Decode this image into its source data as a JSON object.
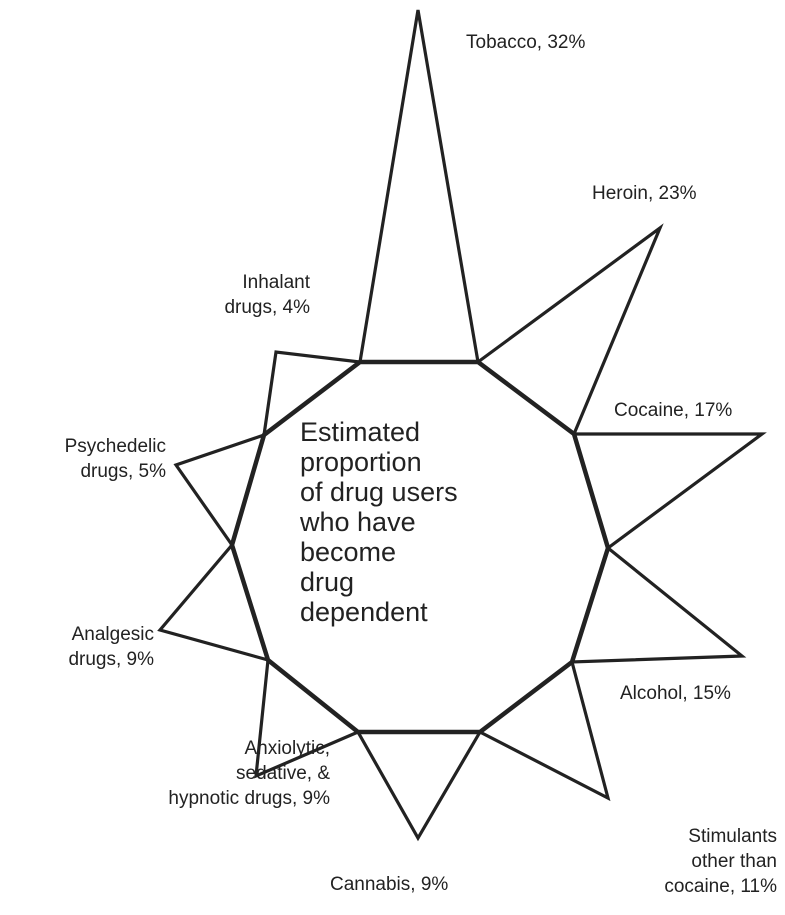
{
  "center_text": "Estimated\nproportion\nof drug users\nwho have\nbecome\ndrug\ndependent",
  "spokes": [
    {
      "key": "tobacco",
      "label": "Tobacco, 32%",
      "value": 32
    },
    {
      "key": "heroin",
      "label": "Heroin, 23%",
      "value": 23
    },
    {
      "key": "cocaine",
      "label": "Cocaine, 17%",
      "value": 17
    },
    {
      "key": "alcohol",
      "label": "Alcohol, 15%",
      "value": 15
    },
    {
      "key": "stimulants",
      "label": "Stimulants\nother than\ncocaine, 11%",
      "value": 11
    },
    {
      "key": "cannabis",
      "label": "Cannabis, 9%",
      "value": 9
    },
    {
      "key": "anxiolytic",
      "label": "Anxiolytic,\nsedative, &\nhypnotic drugs, 9%",
      "value": 9
    },
    {
      "key": "analgesic",
      "label": "Analgesic\ndrugs, 9%",
      "value": 9
    },
    {
      "key": "psychedelic",
      "label": "Psychedelic\ndrugs, 5%",
      "value": 5
    },
    {
      "key": "inhalant",
      "label": "Inhalant\ndrugs, 4%",
      "value": 4
    }
  ]
}
